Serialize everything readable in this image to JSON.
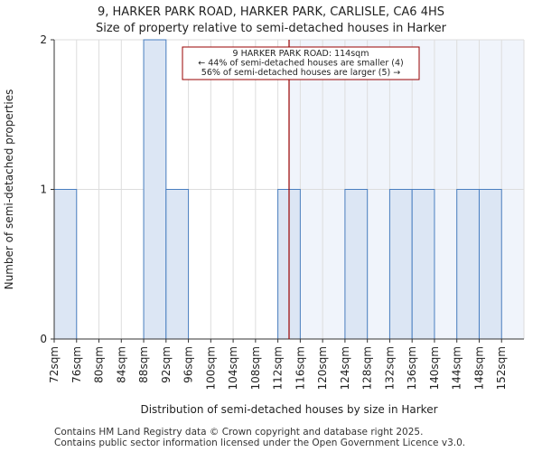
{
  "chart_data": {
    "type": "bar",
    "title": "9, HARKER PARK ROAD, HARKER PARK, CARLISLE, CA6 4HS",
    "subtitle": "Size of property relative to semi-detached houses in Harker",
    "xlabel": "Distribution of semi-detached houses by size in Harker",
    "ylabel": "Number of semi-detached properties",
    "categories": [
      "72sqm",
      "76sqm",
      "80sqm",
      "84sqm",
      "88sqm",
      "92sqm",
      "96sqm",
      "100sqm",
      "104sqm",
      "108sqm",
      "112sqm",
      "116sqm",
      "120sqm",
      "124sqm",
      "128sqm",
      "132sqm",
      "136sqm",
      "140sqm",
      "144sqm",
      "148sqm",
      "152sqm"
    ],
    "values": [
      1,
      0,
      0,
      0,
      2,
      1,
      0,
      0,
      0,
      0,
      1,
      0,
      0,
      1,
      0,
      1,
      1,
      0,
      1,
      1,
      0
    ],
    "ylim": [
      0,
      2
    ],
    "yticks": [
      0,
      1,
      2
    ],
    "grid": true,
    "marker": {
      "value": 114,
      "unit": "sqm"
    },
    "annotation": {
      "lines": [
        "9 HARKER PARK ROAD: 114sqm",
        "← 44% of semi-detached houses are smaller (4)",
        "56% of semi-detached houses are larger (5) →"
      ]
    },
    "colors": {
      "bar_fill": "#dce6f4",
      "bar_stroke": "#4a7fc0",
      "marker": "#990000",
      "highlight": "#f0f4fb",
      "grid": "#dddddd"
    }
  },
  "footer": {
    "line1": "Contains HM Land Registry data © Crown copyright and database right 2025.",
    "line2": "Contains public sector information licensed under the Open Government Licence v3.0."
  }
}
